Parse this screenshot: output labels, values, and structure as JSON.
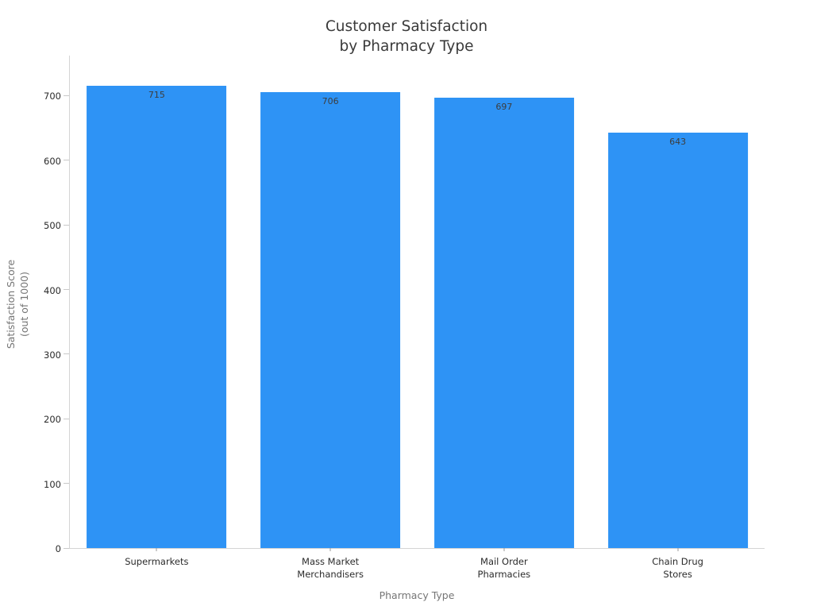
{
  "chart_data": {
    "type": "bar",
    "title": "Customer Satisfaction by Pharmacy Type",
    "title_lines": [
      "Customer Satisfaction",
      "by Pharmacy Type"
    ],
    "xlabel": "Pharmacy Type",
    "ylabel": "Satisfaction Score (out of 1000)",
    "ylabel_lines": [
      "Satisfaction Score",
      "(out of 1000)"
    ],
    "categories": [
      "Supermarkets",
      "Mass Market Merchandisers",
      "Mail Order Pharmacies",
      "Chain Drug Stores"
    ],
    "category_lines": [
      [
        "Supermarkets"
      ],
      [
        "Mass Market",
        "Merchandisers"
      ],
      [
        "Mail Order",
        "Pharmacies"
      ],
      [
        "Chain Drug",
        "Stores"
      ]
    ],
    "values": [
      715,
      706,
      697,
      643
    ],
    "value_labels": [
      "715",
      "706",
      "697",
      "643"
    ],
    "yticks": [
      0,
      100,
      200,
      300,
      400,
      500,
      600,
      700
    ],
    "ylim": [
      0,
      762
    ],
    "grid": false,
    "legend": "none",
    "colors": {
      "bar": "#2e93f5",
      "title_text": "#3a3a3a",
      "tick_text": "#2b2b2b",
      "axis_label_text": "#757575",
      "value_label_text": "#3d3d3d",
      "spine": "#d4d4d4"
    }
  }
}
